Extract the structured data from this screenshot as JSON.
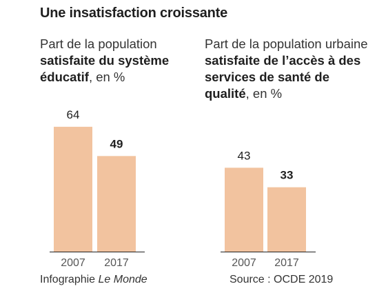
{
  "title": "Une insatisfaction croissante",
  "charts": {
    "left": {
      "subtitle_pre": "Part de la population ",
      "subtitle_bold": "satisfaite du système éducatif",
      "subtitle_post": ", en %"
    },
    "right": {
      "subtitle_pre": "Part de la population urbaine ",
      "subtitle_bold": "satisfaite de l’accès à des services de santé de qualité",
      "subtitle_post": ", en %"
    }
  },
  "footer": {
    "credit_prefix": "Infographie ",
    "credit_italic": "Le Monde",
    "source": "Source : OCDE 2019"
  },
  "colors": {
    "bar": "#f2c39f",
    "axis": "#1f1f1f",
    "tick_text": "#555555",
    "value_text": "#1f1f1f"
  },
  "chart_data": [
    {
      "type": "bar",
      "categories": [
        "2007",
        "2017"
      ],
      "values": [
        64,
        49
      ],
      "value_labels": [
        "64",
        "49"
      ],
      "highlight_last": true,
      "title": "Part de la population satisfaite du système éducatif, en %"
    },
    {
      "type": "bar",
      "categories": [
        "2007",
        "2017"
      ],
      "values": [
        43,
        33
      ],
      "value_labels": [
        "43",
        "33"
      ],
      "highlight_last": true,
      "title": "Part de la population urbaine satisfaite de l’accès à des services de santé de qualité, en %"
    }
  ]
}
